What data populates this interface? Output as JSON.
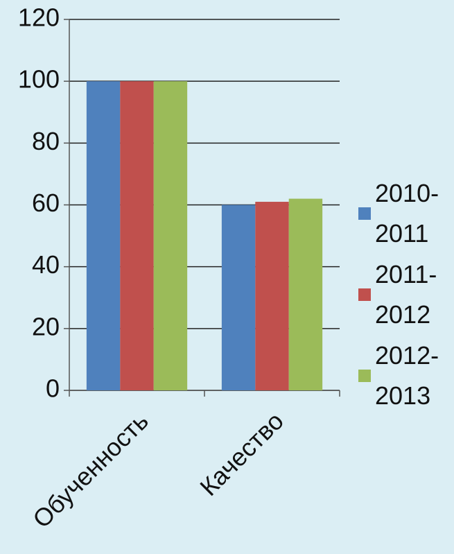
{
  "chart_data": {
    "type": "bar",
    "categories": [
      "Обученность",
      "Качество"
    ],
    "series": [
      {
        "name": "2010-2011",
        "color": "#4f81bd",
        "values": [
          100,
          60
        ]
      },
      {
        "name": "2011-2012",
        "color": "#c0504d",
        "values": [
          100,
          61
        ]
      },
      {
        "name": "2012-2013",
        "color": "#9bbb59",
        "values": [
          100,
          62
        ]
      }
    ],
    "ylim": [
      0,
      120
    ],
    "yticks": [
      0,
      20,
      40,
      60,
      80,
      100,
      120
    ],
    "grid": true,
    "legend": "right"
  }
}
